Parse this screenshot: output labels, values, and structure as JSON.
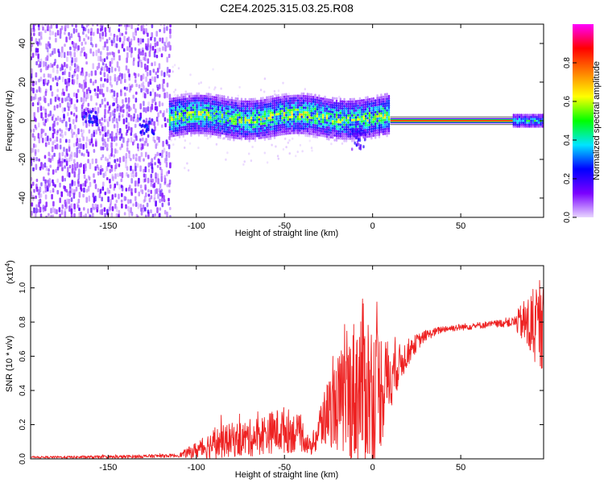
{
  "title": "C2E4.2025.315.03.25.R08",
  "chart_data": [
    {
      "type": "heatmap",
      "xlabel": "Height of straight line (km)",
      "ylabel": "Frequency (Hz)",
      "xlim": [
        -194,
        97
      ],
      "ylim": [
        -50,
        50
      ],
      "xticks": [
        -150,
        -100,
        -50,
        0,
        50
      ],
      "xtick_labels": [
        "-150",
        "-100",
        "-50",
        "0",
        "50"
      ],
      "yticks": [
        40,
        20,
        0,
        -20,
        -40
      ],
      "ytick_labels": [
        "40",
        "20",
        "0",
        "-20",
        "-40"
      ],
      "colorbar": {
        "label": "Normalized spectral amplitude",
        "range": [
          0,
          1
        ],
        "ticks": [
          0.0,
          0.2,
          0.4,
          0.6,
          0.8
        ],
        "tick_labels": [
          "0.0",
          "0.2",
          "0.4",
          "0.6",
          "0.8"
        ],
        "colormap": [
          "#e8d6ff",
          "#7a00ff",
          "#0000ff",
          "#00e5ff",
          "#00ff00",
          "#ffff00",
          "#ff8000",
          "#ff0000",
          "#ff00ff"
        ]
      },
      "features": [
        {
          "name": "broadband noise",
          "x_range": [
            -194,
            -115
          ],
          "freq_range": [
            -50,
            50
          ],
          "amplitude": 0.12
        },
        {
          "name": "signal band",
          "x_range": [
            -115,
            10
          ],
          "center_freq": 2,
          "half_width_hz": 5,
          "amplitude": 0.45
        },
        {
          "name": "strong line",
          "x_range": [
            10,
            80
          ],
          "center_freq": 0,
          "half_width_hz": 1,
          "amplitude": 0.9
        },
        {
          "name": "line end",
          "x_range": [
            80,
            97
          ],
          "center_freq": 0,
          "half_width_hz": 3,
          "amplitude": 0.4
        }
      ]
    },
    {
      "type": "line",
      "xlabel": "Height of straight line (km)",
      "ylabel": "SNR (10 * v/v)",
      "scale_label": "(x10",
      "scale_exp": "4",
      "scale_close": ")",
      "xlim": [
        -194,
        97
      ],
      "ylim": [
        0,
        1.13
      ],
      "xticks": [
        -150,
        -100,
        -50,
        0,
        50
      ],
      "xtick_labels": [
        "-150",
        "-100",
        "-50",
        "0",
        "50"
      ],
      "yticks": [
        0.0,
        0.2,
        0.4,
        0.6,
        0.8,
        1.0
      ],
      "ytick_labels": [
        "0.0",
        "0.2",
        "0.4",
        "0.6",
        "0.8",
        "1.0"
      ],
      "color": "#ee2222",
      "series": [
        {
          "name": "SNR",
          "x": [
            -194,
            -150,
            -110,
            -100,
            -90,
            -80,
            -70,
            -60,
            -50,
            -40,
            -35,
            -30,
            -25,
            -20,
            -15,
            -10,
            -5,
            0,
            5,
            10,
            15,
            20,
            25,
            30,
            40,
            50,
            60,
            70,
            80,
            85,
            90,
            97
          ],
          "mean": [
            0.01,
            0.01,
            0.02,
            0.05,
            0.09,
            0.11,
            0.12,
            0.15,
            0.17,
            0.14,
            0.06,
            0.18,
            0.28,
            0.32,
            0.35,
            0.4,
            0.45,
            0.38,
            0.42,
            0.48,
            0.55,
            0.62,
            0.68,
            0.72,
            0.76,
            0.77,
            0.78,
            0.79,
            0.8,
            0.8,
            0.77,
            0.75
          ],
          "spread": [
            0.005,
            0.01,
            0.01,
            0.05,
            0.09,
            0.1,
            0.11,
            0.12,
            0.14,
            0.1,
            0.04,
            0.15,
            0.2,
            0.28,
            0.35,
            0.45,
            0.5,
            0.45,
            0.35,
            0.2,
            0.12,
            0.08,
            0.05,
            0.03,
            0.02,
            0.02,
            0.02,
            0.02,
            0.03,
            0.12,
            0.22,
            0.25
          ]
        }
      ]
    }
  ]
}
